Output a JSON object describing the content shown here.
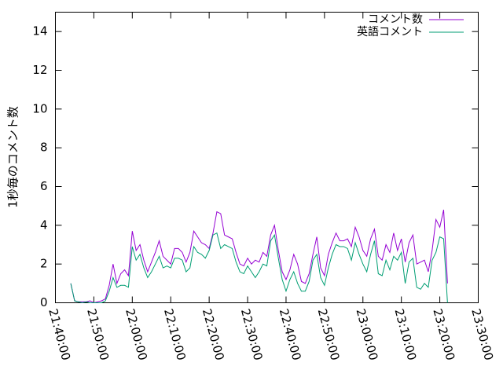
{
  "chart_data": {
    "type": "line",
    "ylabel": "1秒毎のコメント数",
    "x": [
      "21:44:00",
      "21:45:00",
      "21:46:00",
      "21:47:00",
      "21:48:00",
      "21:49:00",
      "21:50:00",
      "21:51:00",
      "21:52:00",
      "21:53:00",
      "21:54:00",
      "21:55:00",
      "21:56:00",
      "21:57:00",
      "21:58:00",
      "21:59:00",
      "22:00:00",
      "22:01:00",
      "22:02:00",
      "22:03:00",
      "22:04:00",
      "22:05:00",
      "22:06:00",
      "22:07:00",
      "22:08:00",
      "22:09:00",
      "22:10:00",
      "22:11:00",
      "22:12:00",
      "22:13:00",
      "22:14:00",
      "22:15:00",
      "22:16:00",
      "22:17:00",
      "22:18:00",
      "22:19:00",
      "22:20:00",
      "22:21:00",
      "22:22:00",
      "22:23:00",
      "22:24:00",
      "22:25:00",
      "22:26:00",
      "22:27:00",
      "22:28:00",
      "22:29:00",
      "22:30:00",
      "22:31:00",
      "22:32:00",
      "22:33:00",
      "22:34:00",
      "22:35:00",
      "22:36:00",
      "22:37:00",
      "22:38:00",
      "22:39:00",
      "22:40:00",
      "22:41:00",
      "22:42:00",
      "22:43:00",
      "22:44:00",
      "22:45:00",
      "22:46:00",
      "22:47:00",
      "22:48:00",
      "22:49:00",
      "22:50:00",
      "22:51:00",
      "22:52:00",
      "22:53:00",
      "22:54:00",
      "22:55:00",
      "22:56:00",
      "22:57:00",
      "22:58:00",
      "22:59:00",
      "23:00:00",
      "23:01:00",
      "23:02:00",
      "23:03:00",
      "23:04:00",
      "23:05:00",
      "23:06:00",
      "23:07:00",
      "23:08:00",
      "23:09:00",
      "23:10:00",
      "23:11:00",
      "23:12:00",
      "23:13:00",
      "23:14:00",
      "23:15:00",
      "23:16:00",
      "23:17:00",
      "23:18:00",
      "23:19:00",
      "23:20:00",
      "23:21:00",
      "23:22:00"
    ],
    "series": [
      {
        "name": "コメント数",
        "color": "#9400d3",
        "values": [
          1.0,
          0.1,
          0.05,
          0.05,
          0.05,
          0.1,
          0.0,
          0.05,
          0.1,
          0.2,
          0.9,
          2.0,
          1.0,
          1.5,
          1.7,
          1.4,
          3.7,
          2.7,
          3.0,
          2.2,
          1.6,
          2.1,
          2.6,
          3.2,
          2.4,
          2.2,
          2.0,
          2.8,
          2.8,
          2.6,
          2.1,
          2.6,
          3.7,
          3.4,
          3.1,
          3.0,
          2.8,
          3.6,
          4.7,
          4.6,
          3.5,
          3.4,
          3.3,
          2.6,
          2.0,
          1.9,
          2.3,
          2.0,
          2.2,
          2.1,
          2.6,
          2.4,
          3.5,
          4.0,
          2.7,
          1.6,
          1.2,
          1.7,
          2.5,
          2.0,
          1.1,
          1.0,
          1.5,
          2.5,
          3.4,
          1.8,
          1.4,
          2.5,
          3.1,
          3.6,
          3.2,
          3.2,
          3.3,
          2.9,
          3.9,
          3.4,
          2.7,
          2.4,
          3.3,
          3.8,
          2.4,
          2.2,
          3.0,
          2.6,
          3.6,
          2.7,
          3.3,
          2.1,
          3.1,
          3.5,
          2.0,
          2.1,
          2.2,
          1.6,
          2.7,
          4.3,
          3.9,
          4.8,
          1.0
        ]
      },
      {
        "name": "英語コメント",
        "color": "#009e73",
        "values": [
          1.0,
          0.1,
          0.05,
          0.0,
          0.05,
          0.0,
          0.0,
          0.0,
          0.0,
          0.1,
          0.6,
          1.3,
          0.8,
          0.9,
          0.9,
          0.8,
          2.9,
          2.2,
          2.5,
          1.8,
          1.3,
          1.6,
          2.0,
          2.4,
          1.8,
          1.9,
          1.8,
          2.3,
          2.3,
          2.2,
          1.6,
          1.8,
          2.9,
          2.6,
          2.5,
          2.3,
          2.7,
          3.5,
          3.6,
          2.8,
          3.0,
          2.9,
          2.8,
          2.1,
          1.6,
          1.5,
          1.9,
          1.6,
          1.3,
          1.6,
          2.0,
          1.9,
          3.2,
          3.5,
          2.3,
          1.2,
          0.6,
          1.2,
          1.6,
          1.0,
          0.6,
          0.6,
          1.1,
          2.2,
          2.5,
          1.3,
          0.9,
          1.8,
          2.5,
          3.0,
          2.9,
          2.9,
          2.8,
          2.2,
          3.1,
          2.5,
          2.0,
          1.6,
          2.5,
          3.2,
          1.5,
          1.4,
          2.2,
          1.7,
          2.4,
          2.2,
          2.6,
          1.0,
          2.1,
          2.3,
          0.8,
          0.7,
          1.0,
          0.8,
          2.2,
          2.6,
          3.4,
          3.3,
          0.0
        ]
      }
    ],
    "xlim": [
      "21:40:00",
      "23:30:00"
    ],
    "xticks": [
      "21:40:00",
      "21:50:00",
      "22:00:00",
      "22:10:00",
      "22:20:00",
      "22:30:00",
      "22:40:00",
      "22:50:00",
      "23:00:00",
      "23:10:00",
      "23:20:00",
      "23:30:00"
    ],
    "ylim": [
      0,
      15
    ],
    "yticks": [
      0,
      2,
      4,
      6,
      8,
      10,
      12,
      14
    ],
    "legend": "top-right"
  }
}
